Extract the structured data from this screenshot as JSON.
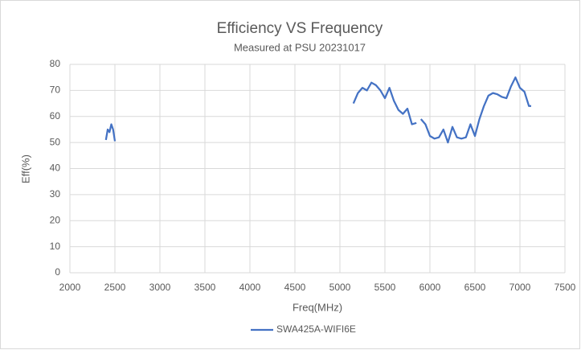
{
  "chart_data": {
    "type": "line",
    "title": "Efficiency VS Frequency",
    "subtitle": "Measured at PSU 20231017",
    "xlabel": "Freq(MHz)",
    "ylabel": "Eff(%)",
    "x": [
      2400,
      2420,
      2440,
      2460,
      2480,
      2500,
      2800,
      5150,
      5200,
      5250,
      5300,
      5350,
      5400,
      5450,
      5500,
      5550,
      5600,
      5650,
      5700,
      5750,
      5800,
      5850,
      5875,
      5900,
      5950,
      6000,
      6050,
      6100,
      6150,
      6200,
      6250,
      6300,
      6350,
      6400,
      6450,
      6500,
      6550,
      6600,
      6650,
      6700,
      6750,
      6800,
      6850,
      6900,
      6950,
      7000,
      7050,
      7100,
      7125
    ],
    "series": [
      {
        "name": "SWA425A-WIFI6E",
        "color": "#4472c4",
        "values": [
          51,
          55,
          54,
          57,
          55,
          50.5,
          null,
          65,
          69,
          71,
          70,
          73,
          72,
          70,
          67,
          71,
          66,
          62.5,
          61,
          63,
          57,
          57.5,
          null,
          59,
          57,
          52.5,
          51.5,
          52,
          55,
          50,
          56,
          52,
          51.5,
          52,
          57,
          52.5,
          59,
          64,
          68,
          69,
          68.5,
          67.5,
          67,
          71.5,
          75,
          71,
          69.5,
          64,
          64
        ]
      }
    ],
    "xlim": [
      2000,
      7500
    ],
    "xticks": [
      2000,
      2500,
      3000,
      3500,
      4000,
      4500,
      5000,
      5500,
      6000,
      6500,
      7000,
      7500
    ],
    "ylim": [
      0,
      80
    ],
    "yticks": [
      0,
      10,
      20,
      30,
      40,
      50,
      60,
      70,
      80
    ],
    "grid": true,
    "legend": "bottom"
  }
}
